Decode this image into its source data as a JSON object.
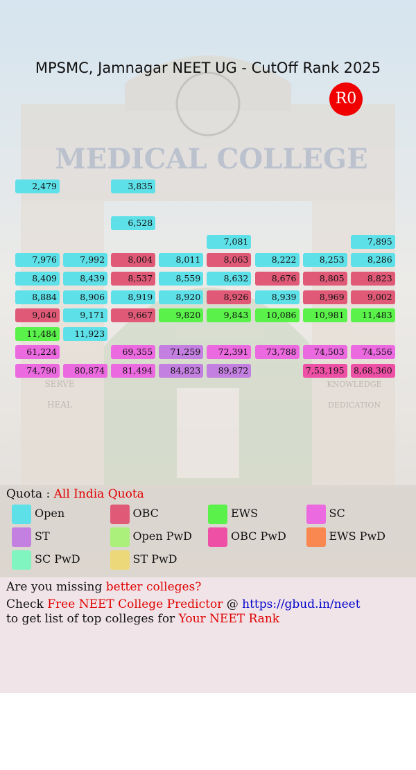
{
  "header": {
    "title": "MPSMC, Jamnagar NEET UG - CutOff Rank 2025",
    "round": "R0"
  },
  "background": {
    "sign": "MEDICAL COLLEGE",
    "left_words": [
      "SERVE",
      "HEAL"
    ],
    "right_words": [
      "KNOWLEDGE",
      "DEDICATION"
    ]
  },
  "grid": {
    "rows": [
      [
        {
          "text": "2,479",
          "quota": "Open"
        },
        null,
        {
          "text": "3,835",
          "quota": "Open"
        },
        null,
        null,
        null,
        null,
        null
      ],
      [
        null,
        null,
        null,
        null,
        null,
        null,
        null,
        null
      ],
      [
        null,
        null,
        {
          "text": "6,528",
          "quota": "Open"
        },
        null,
        null,
        null,
        null,
        null
      ],
      [
        null,
        null,
        null,
        null,
        {
          "text": "7,081",
          "quota": "Open"
        },
        null,
        null,
        {
          "text": "7,895",
          "quota": "Open"
        }
      ],
      [
        {
          "text": "7,976",
          "quota": "Open"
        },
        {
          "text": "7,992",
          "quota": "Open"
        },
        {
          "text": "8,004",
          "quota": "OBC"
        },
        {
          "text": "8,011",
          "quota": "Open"
        },
        {
          "text": "8,063",
          "quota": "OBC"
        },
        {
          "text": "8,222",
          "quota": "Open"
        },
        {
          "text": "8,253",
          "quota": "Open"
        },
        {
          "text": "8,286",
          "quota": "Open"
        }
      ],
      [
        {
          "text": "8,409",
          "quota": "Open"
        },
        {
          "text": "8,439",
          "quota": "Open"
        },
        {
          "text": "8,537",
          "quota": "OBC"
        },
        {
          "text": "8,559",
          "quota": "Open"
        },
        {
          "text": "8,632",
          "quota": "Open"
        },
        {
          "text": "8,676",
          "quota": "OBC"
        },
        {
          "text": "8,805",
          "quota": "OBC"
        },
        {
          "text": "8,823",
          "quota": "OBC"
        }
      ],
      [
        {
          "text": "8,884",
          "quota": "Open"
        },
        {
          "text": "8,906",
          "quota": "Open"
        },
        {
          "text": "8,919",
          "quota": "Open"
        },
        {
          "text": "8,920",
          "quota": "Open"
        },
        {
          "text": "8,926",
          "quota": "OBC"
        },
        {
          "text": "8,939",
          "quota": "Open"
        },
        {
          "text": "8,969",
          "quota": "OBC"
        },
        {
          "text": "9,002",
          "quota": "OBC"
        }
      ],
      [
        {
          "text": "9,040",
          "quota": "OBC"
        },
        {
          "text": "9,171",
          "quota": "Open"
        },
        {
          "text": "9,667",
          "quota": "OBC"
        },
        {
          "text": "9,820",
          "quota": "EWS"
        },
        {
          "text": "9,843",
          "quota": "EWS"
        },
        {
          "text": "10,086",
          "quota": "EWS"
        },
        {
          "text": "10,981",
          "quota": "EWS"
        },
        {
          "text": "11,483",
          "quota": "EWS"
        }
      ],
      [
        {
          "text": "11,484",
          "quota": "EWS"
        },
        {
          "text": "11,923",
          "quota": "Open"
        },
        null,
        null,
        null,
        null,
        null,
        null
      ],
      [
        {
          "text": "61,224",
          "quota": "SC"
        },
        null,
        {
          "text": "69,355",
          "quota": "SC"
        },
        {
          "text": "71,259",
          "quota": "ST"
        },
        {
          "text": "72,391",
          "quota": "SC"
        },
        {
          "text": "73,788",
          "quota": "SC"
        },
        {
          "text": "74,503",
          "quota": "SC"
        },
        {
          "text": "74,556",
          "quota": "SC"
        }
      ],
      [
        {
          "text": "74,790",
          "quota": "SC"
        },
        {
          "text": "80,874",
          "quota": "SC"
        },
        {
          "text": "81,494",
          "quota": "SC"
        },
        {
          "text": "84,823",
          "quota": "ST"
        },
        {
          "text": "89,872",
          "quota": "ST"
        },
        null,
        {
          "text": "7,53,195",
          "quota": "OBC PwD"
        },
        {
          "text": "8,68,360",
          "quota": "OBC PwD"
        }
      ]
    ]
  },
  "legend": {
    "label": "Quota : ",
    "quota": "All India Quota",
    "items": [
      {
        "name": "Open",
        "color": "#5ee0e8"
      },
      {
        "name": "OBC",
        "color": "#e05a78"
      },
      {
        "name": "EWS",
        "color": "#5af24a"
      },
      {
        "name": "SC",
        "color": "#ec6ae0"
      },
      {
        "name": "ST",
        "color": "#c380e0"
      },
      {
        "name": "Open PwD",
        "color": "#aaf07a"
      },
      {
        "name": "OBC PwD",
        "color": "#ee50a6"
      },
      {
        "name": "EWS PwD",
        "color": "#f88850"
      },
      {
        "name": "SC PwD",
        "color": "#80f5c0"
      },
      {
        "name": "ST PwD",
        "color": "#ecd878"
      }
    ]
  },
  "footer": {
    "line1": [
      "Are you missing ",
      "better colleges?"
    ],
    "line2": [
      "Check ",
      "Free NEET College Predictor",
      " @ ",
      "https://gbud.in/neet"
    ],
    "line3": [
      "to get list of top colleges for ",
      "Your NEET Rank"
    ]
  }
}
